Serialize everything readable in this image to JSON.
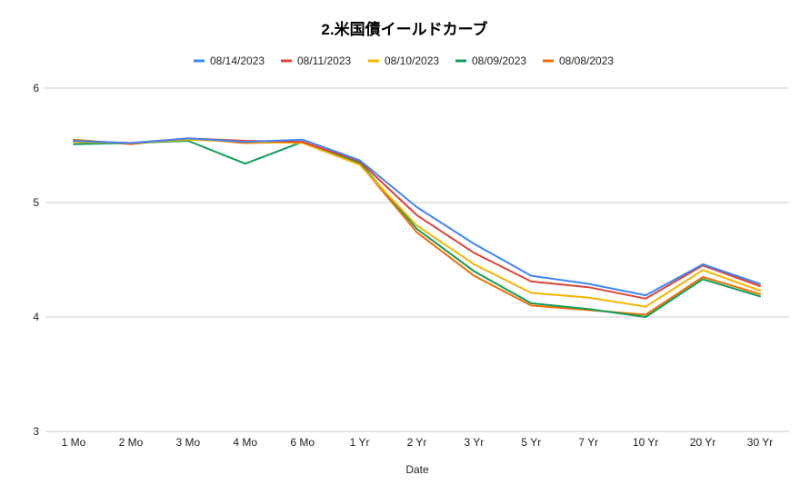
{
  "chart_data": {
    "type": "line",
    "title": "2.米国債イールドカーブ",
    "xlabel": "Date",
    "ylabel": "",
    "ylim": [
      3,
      6
    ],
    "yticks": [
      "3",
      "4",
      "5",
      "6"
    ],
    "grid": true,
    "legend_position": "top",
    "categories": [
      "1 Mo",
      "2 Mo",
      "3 Mo",
      "4 Mo",
      "6 Mo",
      "1 Yr",
      "2 Yr",
      "3 Yr",
      "5 Yr",
      "7 Yr",
      "10 Yr",
      "20 Yr",
      "30 Yr"
    ],
    "series": [
      {
        "name": "08/14/2023",
        "color": "#4285F4",
        "values": [
          5.54,
          5.52,
          5.56,
          5.53,
          5.55,
          5.37,
          4.96,
          4.64,
          4.36,
          4.29,
          4.19,
          4.46,
          4.29
        ]
      },
      {
        "name": "08/11/2023",
        "color": "#DB4437",
        "values": [
          5.54,
          5.52,
          5.56,
          5.54,
          5.53,
          5.36,
          4.89,
          4.56,
          4.31,
          4.26,
          4.16,
          4.45,
          4.27
        ]
      },
      {
        "name": "08/10/2023",
        "color": "#F4B400",
        "values": [
          5.53,
          5.52,
          5.55,
          5.53,
          5.52,
          5.33,
          4.8,
          4.46,
          4.21,
          4.17,
          4.09,
          4.41,
          4.23
        ]
      },
      {
        "name": "08/09/2023",
        "color": "#0F9D58",
        "values": [
          5.51,
          5.52,
          5.54,
          5.34,
          5.53,
          5.35,
          4.77,
          4.4,
          4.12,
          4.07,
          4.0,
          4.33,
          4.18
        ]
      },
      {
        "name": "08/08/2023",
        "color": "#F46D00",
        "values": [
          5.55,
          5.51,
          5.56,
          5.52,
          5.53,
          5.34,
          4.74,
          4.36,
          4.1,
          4.06,
          4.02,
          4.35,
          4.2
        ]
      }
    ]
  }
}
